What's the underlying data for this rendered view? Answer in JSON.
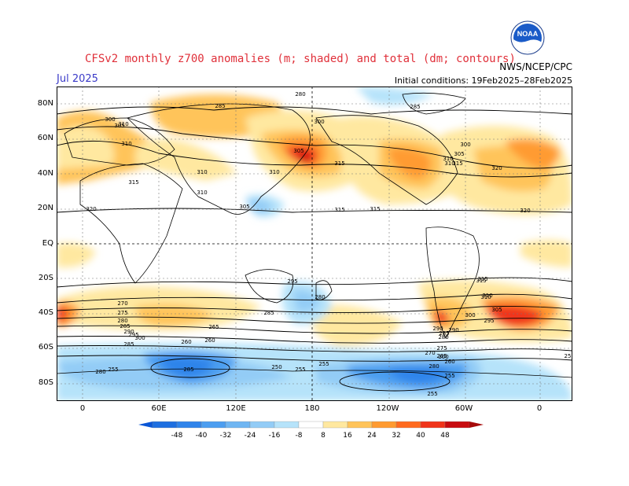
{
  "title": "CFSv2 monthly z700 anomalies (m; shaded) and total (dm; contours)",
  "month": "Jul 2025",
  "agency": "NWS/NCEP/CPC",
  "initial_conditions": "Initial conditions: 19Feb2025–28Feb2025",
  "logo_text": "NOAA",
  "lat_labels": [
    "80N",
    "60N",
    "40N",
    "20N",
    "EQ",
    "20S",
    "40S",
    "60S",
    "80S"
  ],
  "lon_labels": [
    "0",
    "60E",
    "120E",
    "180",
    "120W",
    "60W",
    "0"
  ],
  "colorbar": {
    "labels": [
      "-48",
      "-40",
      "-32",
      "-24",
      "-16",
      "-8",
      "8",
      "16",
      "24",
      "32",
      "40",
      "48"
    ],
    "colors": [
      "#1e6fe0",
      "#2f84ea",
      "#4c9ef0",
      "#6fb6f2",
      "#93ccf6",
      "#b6e3fa",
      "#ffffff",
      "#ffe8a0",
      "#ffc45a",
      "#ff9b30",
      "#ff6a1e",
      "#f0341a",
      "#c80c10"
    ],
    "neg_arrow": "#0a56d6",
    "pos_arrow": "#a60a0a"
  },
  "contour_labels": [
    {
      "t": "280"
    },
    {
      "t": "285"
    },
    {
      "t": "285"
    },
    {
      "t": "300"
    },
    {
      "t": "305"
    },
    {
      "t": "310"
    },
    {
      "t": "310"
    },
    {
      "t": "315"
    },
    {
      "t": "310"
    },
    {
      "t": "310"
    },
    {
      "t": "305"
    },
    {
      "t": "310"
    },
    {
      "t": "315"
    },
    {
      "t": "300"
    },
    {
      "t": "305"
    },
    {
      "t": "310"
    },
    {
      "t": "320"
    },
    {
      "t": "315"
    },
    {
      "t": "320"
    },
    {
      "t": "315"
    },
    {
      "t": "320"
    },
    {
      "t": "315"
    },
    {
      "t": "310"
    },
    {
      "t": "305"
    },
    {
      "t": "300"
    },
    {
      "t": "295"
    },
    {
      "t": "315"
    },
    {
      "t": "310"
    },
    {
      "t": "305"
    },
    {
      "t": "300"
    },
    {
      "t": "295"
    },
    {
      "t": "290"
    },
    {
      "t": "285"
    },
    {
      "t": "280"
    },
    {
      "t": "275"
    },
    {
      "t": "270"
    },
    {
      "t": "265"
    },
    {
      "t": "260"
    },
    {
      "t": "255"
    },
    {
      "t": "285"
    },
    {
      "t": "280"
    },
    {
      "t": "255"
    },
    {
      "t": "250"
    },
    {
      "t": "255"
    },
    {
      "t": "255"
    },
    {
      "t": "290"
    },
    {
      "t": "285"
    },
    {
      "t": "280"
    },
    {
      "t": "270"
    },
    {
      "t": "275"
    },
    {
      "t": "280"
    },
    {
      "t": "285"
    },
    {
      "t": "290"
    },
    {
      "t": "295"
    },
    {
      "t": "300"
    },
    {
      "t": "265"
    },
    {
      "t": "260"
    },
    {
      "t": "285"
    },
    {
      "t": "260"
    },
    {
      "t": "255"
    },
    {
      "t": "280"
    },
    {
      "t": "300"
    },
    {
      "t": "310"
    },
    {
      "t": "315"
    },
    {
      "t": "25"
    }
  ]
}
